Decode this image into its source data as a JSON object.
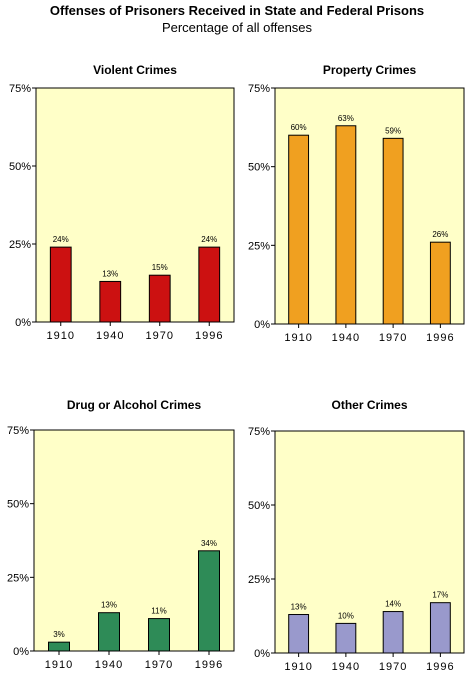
{
  "title": "Offenses of Prisoners Received in State and Federal Prisons",
  "subtitle": "Percentage of all offenses",
  "colors": {
    "background": "#ffffc8",
    "violent": "#cc1111",
    "property": "#f0a020",
    "drug": "#2e8b57",
    "other": "#9999cc"
  },
  "chart_data": [
    {
      "type": "bar",
      "title": "Violent Crimes",
      "categories": [
        "1910",
        "1940",
        "1970",
        "1996"
      ],
      "values": [
        24,
        13,
        15,
        24
      ],
      "data_labels": [
        "24%",
        "13%",
        "15%",
        "24%"
      ],
      "yticks": [
        "0%",
        "25%",
        "50%",
        "75%"
      ],
      "ylim": [
        0,
        75
      ],
      "color": "#cc1111"
    },
    {
      "type": "bar",
      "title": "Property Crimes",
      "categories": [
        "1910",
        "1940",
        "1970",
        "1996"
      ],
      "values": [
        60,
        63,
        59,
        26
      ],
      "data_labels": [
        "60%",
        "63%",
        "59%",
        "26%"
      ],
      "yticks": [
        "0%",
        "25%",
        "50%",
        "75%"
      ],
      "ylim": [
        0,
        75
      ],
      "color": "#f0a020"
    },
    {
      "type": "bar",
      "title": "Drug or Alcohol Crimes",
      "categories": [
        "1910",
        "1940",
        "1970",
        "1996"
      ],
      "values": [
        3,
        13,
        11,
        34
      ],
      "data_labels": [
        "3%",
        "13%",
        "11%",
        "34%"
      ],
      "yticks": [
        "0%",
        "25%",
        "50%",
        "75%"
      ],
      "ylim": [
        0,
        75
      ],
      "color": "#2e8b57"
    },
    {
      "type": "bar",
      "title": "Other Crimes",
      "categories": [
        "1910",
        "1940",
        "1970",
        "1996"
      ],
      "values": [
        13,
        10,
        14,
        17
      ],
      "data_labels": [
        "13%",
        "10%",
        "14%",
        "17%"
      ],
      "yticks": [
        "0%",
        "25%",
        "50%",
        "75%"
      ],
      "ylim": [
        0,
        75
      ],
      "color": "#9999cc"
    }
  ]
}
